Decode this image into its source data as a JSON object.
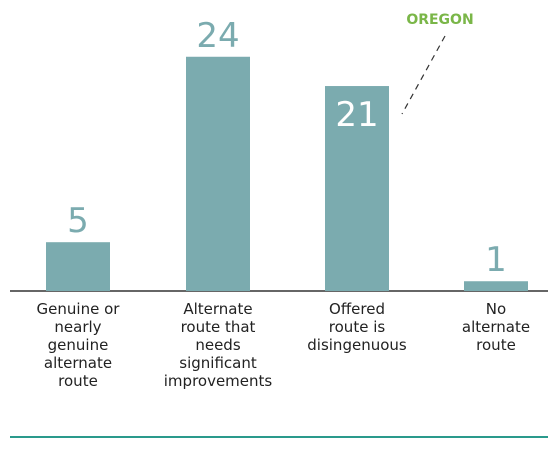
{
  "chart_data": {
    "type": "bar",
    "categories": [
      "Genuine or\nnearly\ngenuine\nalternate\nroute",
      "Alternate\nroute that\nneeds\nsignificant\nimprovements",
      "Offered\nroute is\ndisingenuous",
      "No\nalternate\nroute"
    ],
    "values": [
      5,
      24,
      21,
      1
    ],
    "color": "#7babaf",
    "ylim": [
      0,
      25
    ],
    "annotation": "OREGON"
  }
}
